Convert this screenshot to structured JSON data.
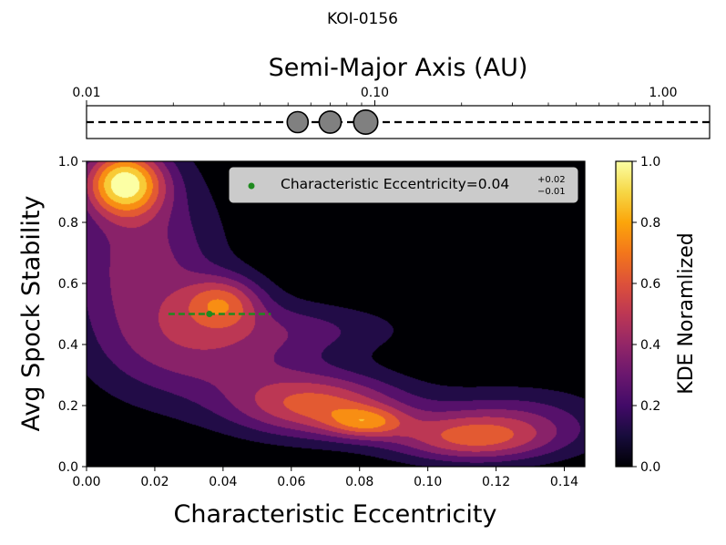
{
  "figure_title": "KOI-0156",
  "chart_data": [
    {
      "type": "scatter",
      "title": "Semi-Major Axis (AU)",
      "xscale": "log",
      "xlim": [
        0.01,
        1.45
      ],
      "xticks": [
        0.01,
        0.1,
        1.0
      ],
      "xtick_labels": [
        "0.01",
        "0.10",
        "1.00"
      ],
      "axis_position": "top",
      "planets": [
        {
          "a": 0.054,
          "size": 1.0
        },
        {
          "a": 0.07,
          "size": 1.05
        },
        {
          "a": 0.093,
          "size": 1.15
        }
      ],
      "line_style": "dashed"
    },
    {
      "type": "heatmap",
      "subtype": "filled-contour-kde",
      "xlabel": "Characteristic Eccentricity",
      "ylabel": "Avg Spock Stability",
      "xlim": [
        0.0,
        0.146
      ],
      "ylim": [
        0.0,
        1.0
      ],
      "xticks": [
        0.0,
        0.02,
        0.04,
        0.06,
        0.08,
        0.1,
        0.12,
        0.14
      ],
      "xtick_labels": [
        "0.00",
        "0.02",
        "0.04",
        "0.06",
        "0.08",
        "0.10",
        "0.12",
        "0.14"
      ],
      "yticks": [
        0.0,
        0.2,
        0.4,
        0.6,
        0.8,
        1.0
      ],
      "ytick_labels": [
        "0.0",
        "0.2",
        "0.4",
        "0.6",
        "0.8",
        "1.0"
      ],
      "colormap": "inferno",
      "marker": {
        "x": 0.036,
        "y": 0.5,
        "xerr_low": 0.012,
        "xerr_high": 0.018,
        "color": "#1f8a1f"
      },
      "legend": {
        "text": "Characteristic Eccentricity=0.04",
        "sup": "+0.02",
        "sub": "−0.01",
        "placement": "upper-right"
      },
      "kde_components": [
        {
          "x": 0.011,
          "y": 0.93,
          "sx": 0.008,
          "sy": 0.075,
          "w": 1.0
        },
        {
          "x": 0.04,
          "y": 0.54,
          "sx": 0.008,
          "sy": 0.06,
          "w": 0.52
        },
        {
          "x": 0.068,
          "y": 0.2,
          "sx": 0.018,
          "sy": 0.075,
          "w": 0.7
        },
        {
          "x": 0.082,
          "y": 0.145,
          "sx": 0.008,
          "sy": 0.035,
          "w": 0.45
        },
        {
          "x": 0.112,
          "y": 0.09,
          "sx": 0.017,
          "sy": 0.055,
          "w": 0.55
        },
        {
          "x": 0.016,
          "y": 0.66,
          "sx": 0.016,
          "sy": 0.24,
          "w": 0.48
        },
        {
          "x": 0.04,
          "y": 0.38,
          "sx": 0.02,
          "sy": 0.12,
          "w": 0.4
        },
        {
          "x": 0.07,
          "y": 0.45,
          "sx": 0.02,
          "sy": 0.06,
          "w": 0.2
        },
        {
          "x": 0.125,
          "y": 0.15,
          "sx": 0.02,
          "sy": 0.08,
          "w": 0.35
        }
      ],
      "contour_levels": [
        0.0,
        0.111,
        0.222,
        0.333,
        0.444,
        0.556,
        0.667,
        0.778,
        0.889,
        1.0
      ],
      "colorbar": {
        "label": "KDE Noramlized",
        "ticks": [
          0.0,
          0.2,
          0.4,
          0.6,
          0.8,
          1.0
        ],
        "tick_labels": [
          "0.0",
          "0.2",
          "0.4",
          "0.6",
          "0.8",
          "1.0"
        ],
        "range": [
          0.0,
          1.0
        ]
      }
    }
  ]
}
